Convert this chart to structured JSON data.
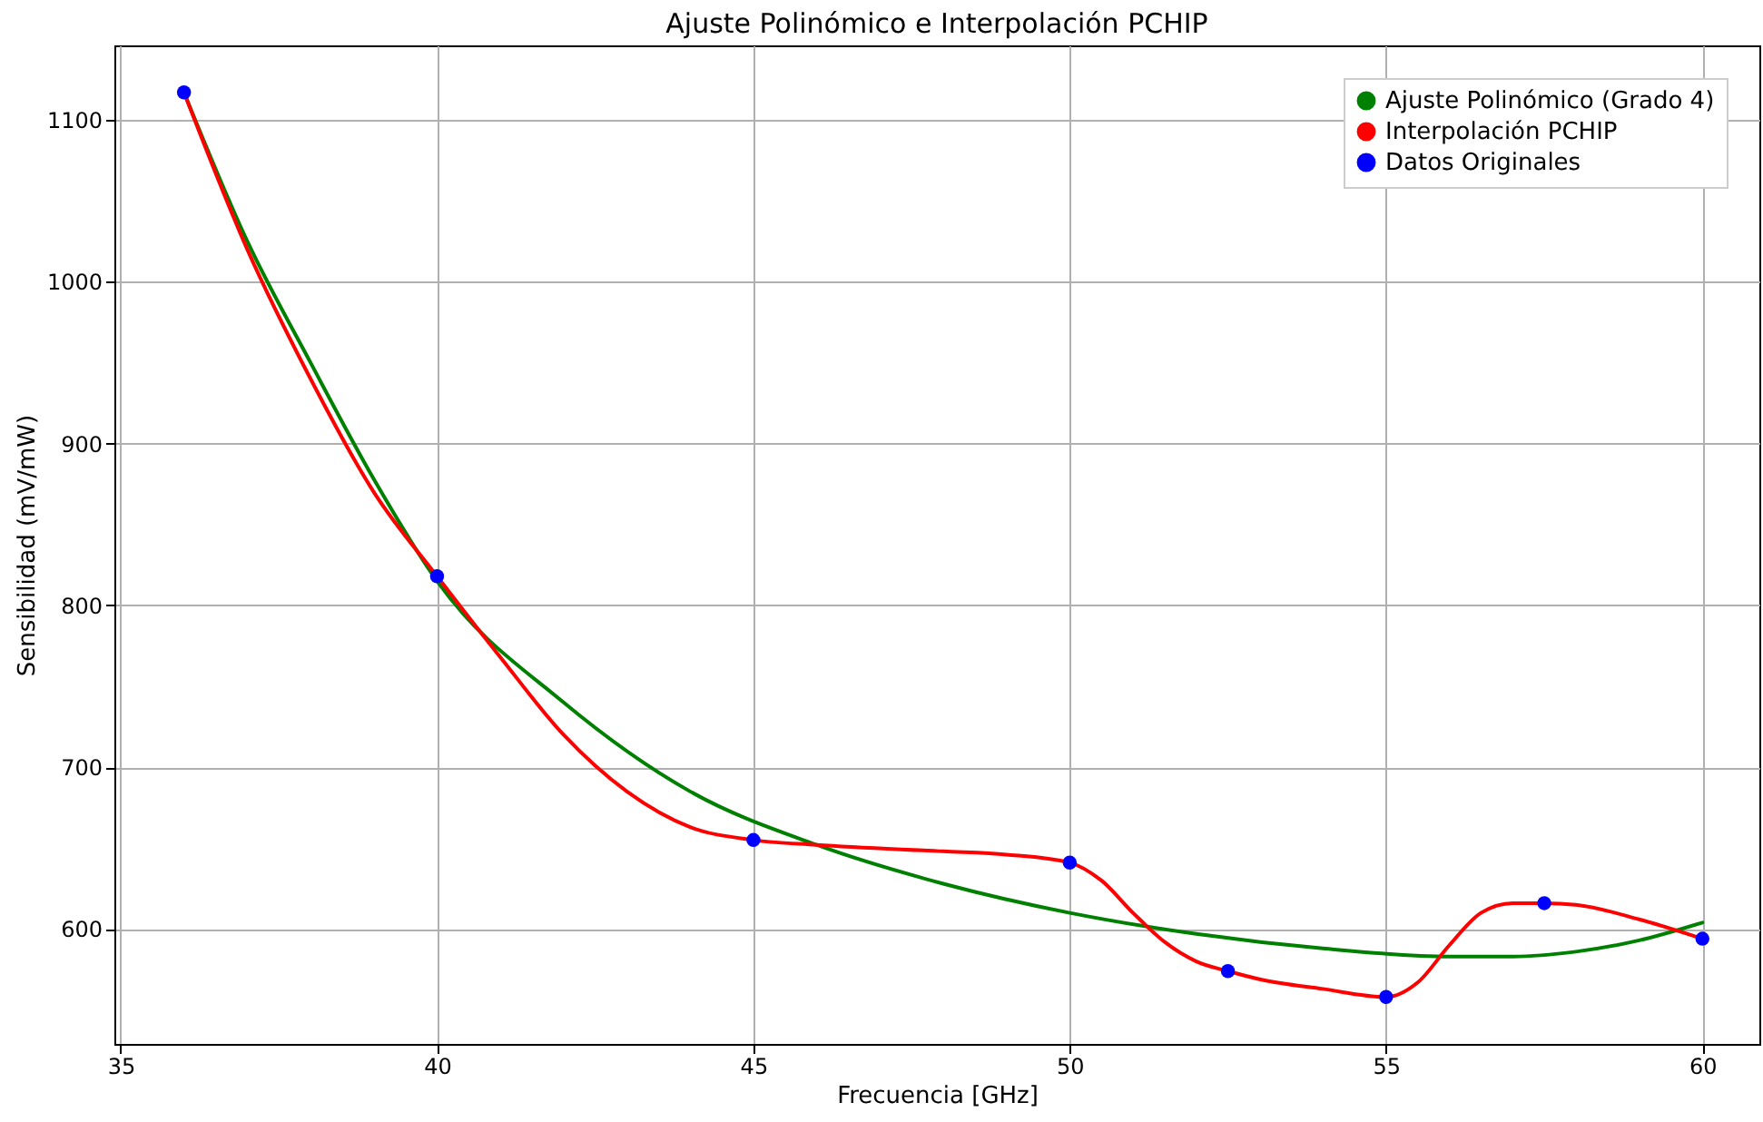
{
  "chart_data": {
    "type": "line",
    "title": "Ajuste Polinómico e Interpolación PCHIP",
    "xlabel": "Frecuencia [GHz]",
    "ylabel": "Sensibilidad (mV/mW)",
    "xlim": [
      34.9,
      60.9
    ],
    "ylim": [
      529,
      1146
    ],
    "xticks": [
      35,
      40,
      45,
      50,
      55,
      60
    ],
    "yticks": [
      600,
      700,
      800,
      900,
      1000,
      1100
    ],
    "grid": true,
    "legend": "top right",
    "series": [
      {
        "name": "Ajuste Polinómico (Grado 4)",
        "color": "#008000",
        "x": [
          36,
          37,
          38,
          39,
          40,
          42,
          44,
          46,
          48,
          50,
          52,
          54,
          56,
          57,
          58,
          59,
          60
        ],
        "values": [
          1117,
          1025,
          950,
          878,
          815,
          740,
          685,
          652,
          628,
          610,
          597,
          588,
          583,
          583,
          586,
          593,
          604
        ]
      },
      {
        "name": "Interpolación PCHIP",
        "color": "#ff0000",
        "x": [
          36,
          37,
          38,
          39,
          40,
          41,
          42,
          43,
          44,
          45,
          46,
          48,
          49,
          50,
          50.5,
          51,
          51.5,
          52,
          52.5,
          53,
          54,
          55,
          55.5,
          56,
          56.5,
          57,
          57.5,
          58,
          59,
          60
        ],
        "values": [
          1117,
          1020,
          940,
          870,
          818,
          768,
          720,
          685,
          663,
          655,
          652,
          648,
          646,
          641,
          630,
          610,
          592,
          580,
          574,
          569,
          563,
          558,
          567,
          590,
          610,
          616,
          616,
          615,
          606,
          594
        ]
      },
      {
        "name": "Datos Originales",
        "type": "scatter",
        "color": "#0000ff",
        "marker": "circle",
        "x": [
          36,
          40,
          45,
          50,
          52.5,
          55,
          57.5,
          60
        ],
        "values": [
          1117,
          818,
          655,
          641,
          574,
          558,
          616,
          594
        ]
      }
    ]
  }
}
